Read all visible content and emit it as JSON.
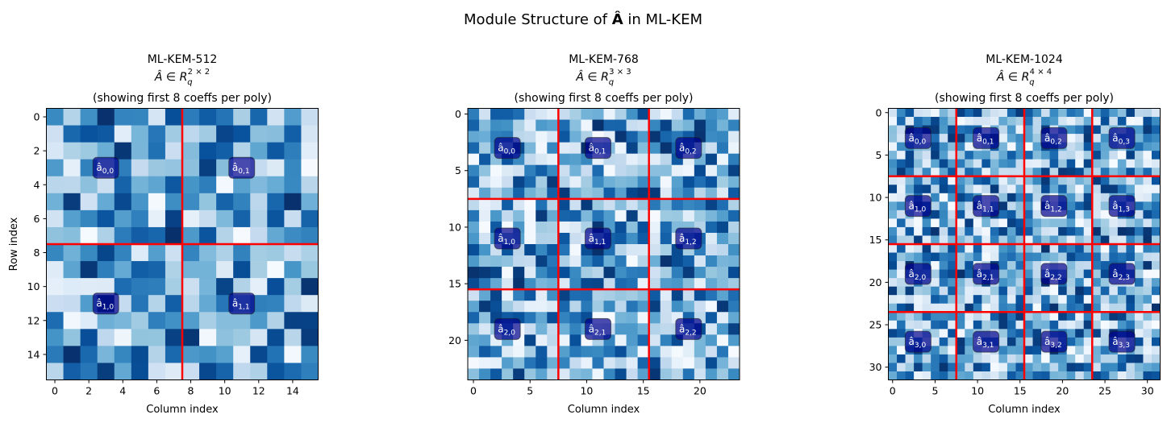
{
  "chart_data": {
    "type": "heatmap",
    "suptitle": {
      "prefix": "Module Structure of ",
      "symbol": "Â",
      "suffix": " in ML-KEM"
    },
    "colormap": "Blues",
    "grid_line_color": "#ff0000",
    "label_box_color": "#00008b",
    "note_values": "cell values not transcribed; random-looking coefficient intensities",
    "panels": [
      {
        "title": "ML-KEM-512",
        "math": {
          "lhs": "Â",
          "in": "∈",
          "ring": "R",
          "sub": "q",
          "sup": "2 × 2"
        },
        "subtitle": "(showing first 8 coeffs per poly)",
        "k": 2,
        "coeffs": 8,
        "xlabel": "Column index",
        "ylabel": "Row index",
        "xticks": [
          0,
          2,
          4,
          6,
          8,
          10,
          12,
          14
        ],
        "yticks": [
          0,
          2,
          4,
          6,
          8,
          10,
          12,
          14
        ]
      },
      {
        "title": "ML-KEM-768",
        "math": {
          "lhs": "Â",
          "in": "∈",
          "ring": "R",
          "sub": "q",
          "sup": "3 × 3"
        },
        "subtitle": "(showing first 8 coeffs per poly)",
        "k": 3,
        "coeffs": 8,
        "xlabel": "Column index",
        "ylabel": "",
        "xticks": [
          0,
          5,
          10,
          15,
          20
        ],
        "yticks": [
          0,
          5,
          10,
          15,
          20
        ]
      },
      {
        "title": "ML-KEM-1024",
        "math": {
          "lhs": "Â",
          "in": "∈",
          "ring": "R",
          "sub": "q",
          "sup": "4 × 4"
        },
        "subtitle": "(showing first 8 coeffs per poly)",
        "k": 4,
        "coeffs": 8,
        "xlabel": "Column index",
        "ylabel": "",
        "xticks": [
          0,
          5,
          10,
          15,
          20,
          25,
          30
        ],
        "yticks": [
          0,
          5,
          10,
          15,
          20,
          25,
          30
        ]
      }
    ],
    "block_label": "â"
  }
}
